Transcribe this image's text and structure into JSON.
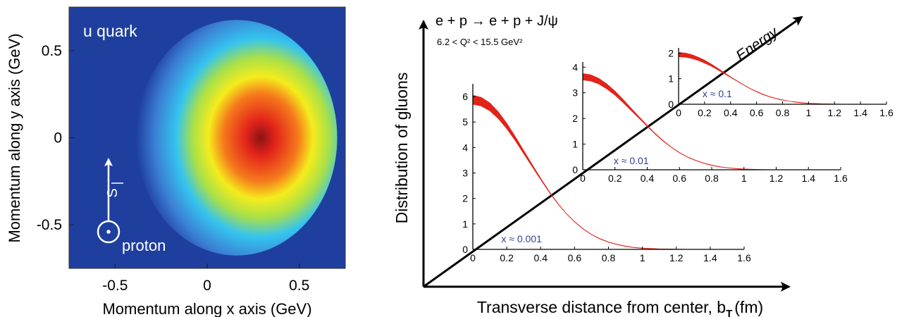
{
  "left_panel": {
    "quark_label": "u quark",
    "spin_label": "S",
    "proton_label": "proton",
    "colors": {
      "blue": "#1f3f9e",
      "cyan": "#35c4ef",
      "yellow": "#f5ec1c",
      "red": "#e2231a",
      "dark_red": "#8a1414"
    }
  },
  "right_panel": {
    "reaction": "e + p → e + p + J/ψ",
    "q2_range": "6.2 < Q² < 15.5 GeV²",
    "energy_label": "Energy",
    "curve_color": "#e2231a",
    "label_color": "#2b3f99"
  },
  "chart_data": [
    {
      "type": "heatmap",
      "title": "u quark",
      "xlabel": "Momentum along x axis (GeV)",
      "ylabel": "Momentum along y axis (GeV)",
      "xlim": [
        -0.75,
        0.75
      ],
      "ylim": [
        -0.75,
        0.75
      ],
      "x_ticks": [
        {
          "value": -0.5,
          "label": "-0.5"
        },
        {
          "value": 0,
          "label": "0"
        },
        {
          "value": 0.5,
          "label": "0.5"
        }
      ],
      "y_ticks": [
        {
          "value": 0.5,
          "label": "0.5"
        },
        {
          "value": 0,
          "label": "0"
        },
        {
          "value": -0.5,
          "label": "-0.5"
        }
      ],
      "peak": {
        "x": 0.18,
        "y": 0.0
      },
      "width_x": 0.21,
      "width_y": 0.26
    },
    {
      "type": "line",
      "ylabel": "Distribution of gluons",
      "xlabel": "Transverse distance from center, b",
      "xlabel_sub": "T",
      "xlabel_unit": "(fm)",
      "panels": [
        {
          "x_label": "x ≈ 0.001",
          "xlim": [
            0,
            1.6
          ],
          "ylim": [
            0,
            6.5
          ],
          "x_ticks": [
            "0",
            "0.2",
            "0.4",
            "0.6",
            "0.8",
            "1",
            "1.2",
            "1.4",
            "1.6"
          ],
          "y_ticks": [
            "0",
            "1",
            "2",
            "3",
            "4",
            "5",
            "6"
          ],
          "x": [
            0,
            0.05,
            0.1,
            0.15,
            0.2,
            0.25,
            0.3,
            0.35,
            0.4,
            0.45,
            0.5,
            0.55,
            0.6,
            0.65,
            0.7,
            0.75,
            0.8,
            0.85,
            0.9,
            0.95,
            1.0,
            1.1,
            1.2,
            1.3,
            1.4
          ],
          "y_upper": [
            6.05,
            5.97,
            5.75,
            5.4,
            4.95,
            4.43,
            3.88,
            3.33,
            2.79,
            2.28,
            1.82,
            1.42,
            1.09,
            0.81,
            0.59,
            0.42,
            0.29,
            0.2,
            0.13,
            0.08,
            0.05,
            0.02,
            0.01,
            0.0,
            0.0
          ],
          "y_lower": [
            5.7,
            5.63,
            5.44,
            5.14,
            4.74,
            4.27,
            3.76,
            3.25,
            2.74,
            2.25,
            1.8,
            1.41,
            1.08,
            0.8,
            0.58,
            0.41,
            0.28,
            0.19,
            0.12,
            0.07,
            0.04,
            0.01,
            0.0,
            0.0,
            0.0
          ]
        },
        {
          "x_label": "x ≈ 0.01",
          "xlim": [
            0,
            1.6
          ],
          "ylim": [
            0,
            4.2
          ],
          "x_ticks": [
            "0",
            "0.2",
            "0.4",
            "0.6",
            "0.8",
            "1",
            "1.2",
            "1.4",
            "1.6"
          ],
          "y_ticks": [
            "0",
            "1",
            "2",
            "3",
            "4"
          ],
          "x": [
            0,
            0.05,
            0.1,
            0.15,
            0.2,
            0.25,
            0.3,
            0.35,
            0.4,
            0.45,
            0.5,
            0.55,
            0.6,
            0.65,
            0.7,
            0.75,
            0.8,
            0.85,
            0.9,
            0.95,
            1.0,
            1.1,
            1.2,
            1.3,
            1.4
          ],
          "y_upper": [
            3.75,
            3.7,
            3.56,
            3.34,
            3.06,
            2.74,
            2.4,
            2.06,
            1.73,
            1.41,
            1.13,
            0.88,
            0.67,
            0.5,
            0.37,
            0.26,
            0.18,
            0.12,
            0.08,
            0.05,
            0.03,
            0.01,
            0.0,
            0.0,
            0.0
          ],
          "y_lower": [
            3.5,
            3.46,
            3.34,
            3.15,
            2.91,
            2.62,
            2.31,
            2.0,
            1.69,
            1.39,
            1.11,
            0.87,
            0.66,
            0.49,
            0.36,
            0.25,
            0.17,
            0.11,
            0.07,
            0.04,
            0.02,
            0.01,
            0.0,
            0.0,
            0.0
          ]
        },
        {
          "x_label": "x ≈ 0.1",
          "xlim": [
            0,
            1.6
          ],
          "ylim": [
            0,
            2.2
          ],
          "x_ticks": [
            "0",
            "0.2",
            "0.4",
            "0.6",
            "0.8",
            "1",
            "1.2",
            "1.4",
            "1.6"
          ],
          "y_ticks": [
            "0",
            "1",
            "2"
          ],
          "x": [
            0,
            0.05,
            0.1,
            0.15,
            0.2,
            0.25,
            0.3,
            0.35,
            0.4,
            0.45,
            0.5,
            0.55,
            0.6,
            0.65,
            0.7,
            0.75,
            0.8,
            0.85,
            0.9,
            0.95,
            1.0,
            1.1,
            1.2,
            1.3,
            1.4
          ],
          "y_upper": [
            2.02,
            2.0,
            1.94,
            1.84,
            1.72,
            1.57,
            1.41,
            1.24,
            1.07,
            0.91,
            0.76,
            0.62,
            0.5,
            0.39,
            0.3,
            0.23,
            0.17,
            0.12,
            0.09,
            0.06,
            0.04,
            0.02,
            0.01,
            0.0,
            0.0
          ],
          "y_lower": [
            1.85,
            1.84,
            1.79,
            1.71,
            1.61,
            1.49,
            1.35,
            1.2,
            1.05,
            0.9,
            0.75,
            0.61,
            0.49,
            0.38,
            0.29,
            0.22,
            0.16,
            0.12,
            0.08,
            0.05,
            0.03,
            0.02,
            0.01,
            0.0,
            0.0
          ]
        }
      ]
    }
  ]
}
